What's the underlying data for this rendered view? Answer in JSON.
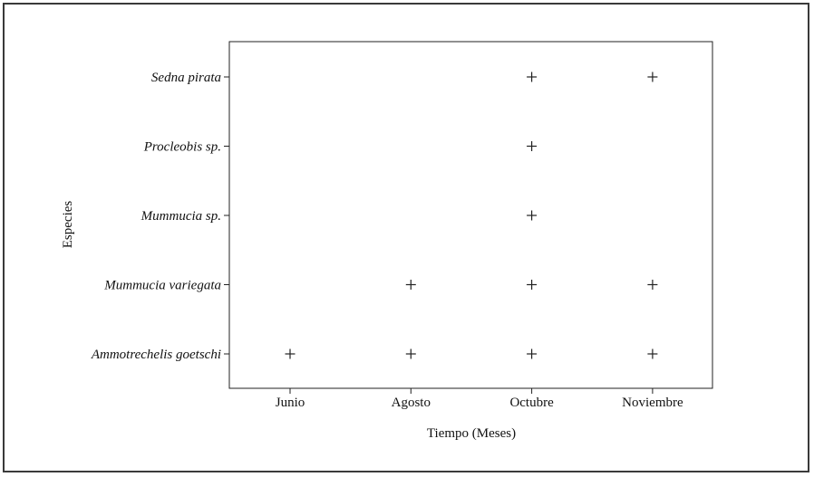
{
  "chart_data": {
    "type": "scatter",
    "title": "",
    "xlabel": "Tiempo (Meses)",
    "ylabel": "Especies",
    "x_categories": [
      "Junio",
      "Agosto",
      "Octubre",
      "Noviembre"
    ],
    "y_categories": [
      "Ammotrechelis goetschi",
      "Mummucia variegata",
      "Mummucia sp.",
      "Procleobis sp.",
      "Sedna pirata"
    ],
    "points": [
      {
        "x": "Junio",
        "y": "Ammotrechelis goetschi"
      },
      {
        "x": "Agosto",
        "y": "Ammotrechelis goetschi"
      },
      {
        "x": "Octubre",
        "y": "Ammotrechelis goetschi"
      },
      {
        "x": "Noviembre",
        "y": "Ammotrechelis goetschi"
      },
      {
        "x": "Agosto",
        "y": "Mummucia variegata"
      },
      {
        "x": "Octubre",
        "y": "Mummucia variegata"
      },
      {
        "x": "Noviembre",
        "y": "Mummucia variegata"
      },
      {
        "x": "Octubre",
        "y": "Mummucia sp."
      },
      {
        "x": "Octubre",
        "y": "Procleobis sp."
      },
      {
        "x": "Octubre",
        "y": "Sedna pirata"
      },
      {
        "x": "Noviembre",
        "y": "Sedna pirata"
      }
    ],
    "marker": "plus",
    "grid": false,
    "legend": "none"
  }
}
